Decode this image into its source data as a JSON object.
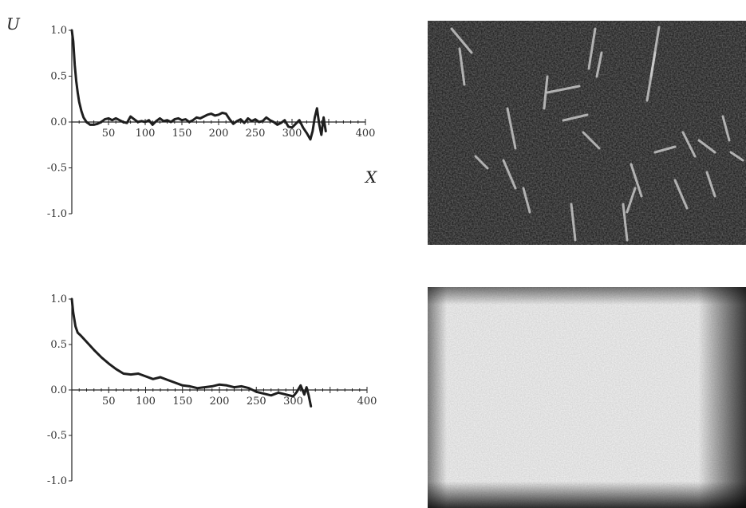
{
  "chart_data": [
    {
      "type": "line",
      "title": "",
      "ylabel": "U",
      "xlabel": "X",
      "xlim": [
        0,
        400
      ],
      "ylim": [
        -1.0,
        1.0
      ],
      "x_ticks": [
        50,
        100,
        150,
        200,
        250,
        300,
        400
      ],
      "x_tick_labels": [
        "50",
        "100",
        "150",
        "200",
        "250",
        "300",
        "400"
      ],
      "y_ticks": [
        1.0,
        0.5,
        0.0,
        -0.5,
        -1.0
      ],
      "y_tick_labels": [
        "1.0",
        "0.5",
        "0.0",
        "-0.5",
        "-1.0"
      ],
      "grid": false,
      "series": [
        {
          "x": [
            0,
            2,
            4,
            6,
            8,
            10,
            13,
            16,
            20,
            25,
            30,
            35,
            40,
            45,
            50,
            55,
            60,
            65,
            70,
            75,
            80,
            85,
            90,
            95,
            100,
            105,
            110,
            115,
            120,
            125,
            130,
            135,
            140,
            145,
            150,
            155,
            160,
            165,
            170,
            175,
            180,
            185,
            190,
            195,
            200,
            205,
            210,
            215,
            220,
            225,
            230,
            235,
            240,
            245,
            250,
            255,
            260,
            265,
            270,
            275,
            280,
            285,
            290,
            295,
            300,
            305,
            310,
            315,
            320,
            325,
            328,
            331,
            334,
            337,
            340,
            343,
            346
          ],
          "y": [
            1.0,
            0.88,
            0.62,
            0.45,
            0.32,
            0.22,
            0.12,
            0.05,
            0.0,
            -0.03,
            -0.03,
            -0.02,
            0.0,
            0.03,
            0.04,
            0.02,
            0.04,
            0.02,
            0.0,
            -0.01,
            0.06,
            0.03,
            0.0,
            0.01,
            0.0,
            0.02,
            -0.03,
            0.01,
            0.04,
            0.01,
            0.02,
            0.0,
            0.03,
            0.04,
            0.02,
            0.03,
            0.0,
            0.02,
            0.05,
            0.04,
            0.06,
            0.08,
            0.09,
            0.07,
            0.08,
            0.1,
            0.09,
            0.03,
            -0.02,
            0.01,
            0.03,
            -0.01,
            0.04,
            0.01,
            0.03,
            0.0,
            0.01,
            0.05,
            0.02,
            0.0,
            -0.03,
            -0.01,
            0.02,
            -0.05,
            -0.06,
            -0.02,
            0.02,
            -0.06,
            -0.12,
            -0.19,
            -0.1,
            0.05,
            0.15,
            -0.02,
            -0.14,
            0.05,
            -0.1
          ]
        }
      ]
    },
    {
      "type": "line",
      "title": "",
      "ylabel": "",
      "xlabel": "",
      "xlim": [
        0,
        400
      ],
      "ylim": [
        -1.0,
        1.0
      ],
      "x_ticks": [
        50,
        100,
        150,
        200,
        250,
        300,
        400
      ],
      "x_tick_labels": [
        "50",
        "100",
        "150",
        "200",
        "250",
        "300",
        "400"
      ],
      "y_ticks": [
        1.0,
        0.5,
        0.0,
        -0.5,
        -1.0
      ],
      "y_tick_labels": [
        "1.0",
        "0.5",
        "0.0",
        "-0.5",
        "-1.0"
      ],
      "grid": false,
      "series": [
        {
          "x": [
            0,
            2,
            5,
            8,
            12,
            20,
            30,
            40,
            50,
            60,
            70,
            80,
            90,
            100,
            110,
            120,
            130,
            140,
            150,
            160,
            170,
            180,
            190,
            200,
            210,
            220,
            230,
            240,
            250,
            260,
            270,
            280,
            290,
            300,
            305,
            310,
            315,
            318,
            321,
            324
          ],
          "y": [
            1.0,
            0.85,
            0.7,
            0.63,
            0.6,
            0.53,
            0.44,
            0.36,
            0.29,
            0.23,
            0.18,
            0.17,
            0.18,
            0.15,
            0.12,
            0.14,
            0.11,
            0.08,
            0.05,
            0.04,
            0.02,
            0.03,
            0.04,
            0.06,
            0.05,
            0.03,
            0.04,
            0.02,
            -0.02,
            -0.04,
            -0.06,
            -0.03,
            -0.05,
            -0.07,
            -0.02,
            0.05,
            -0.05,
            0.03,
            -0.06,
            -0.18
          ]
        }
      ]
    }
  ],
  "images": {
    "top": {
      "description_name": "dark-micrograph"
    },
    "bottom": {
      "description_name": "light-micrograph"
    }
  }
}
